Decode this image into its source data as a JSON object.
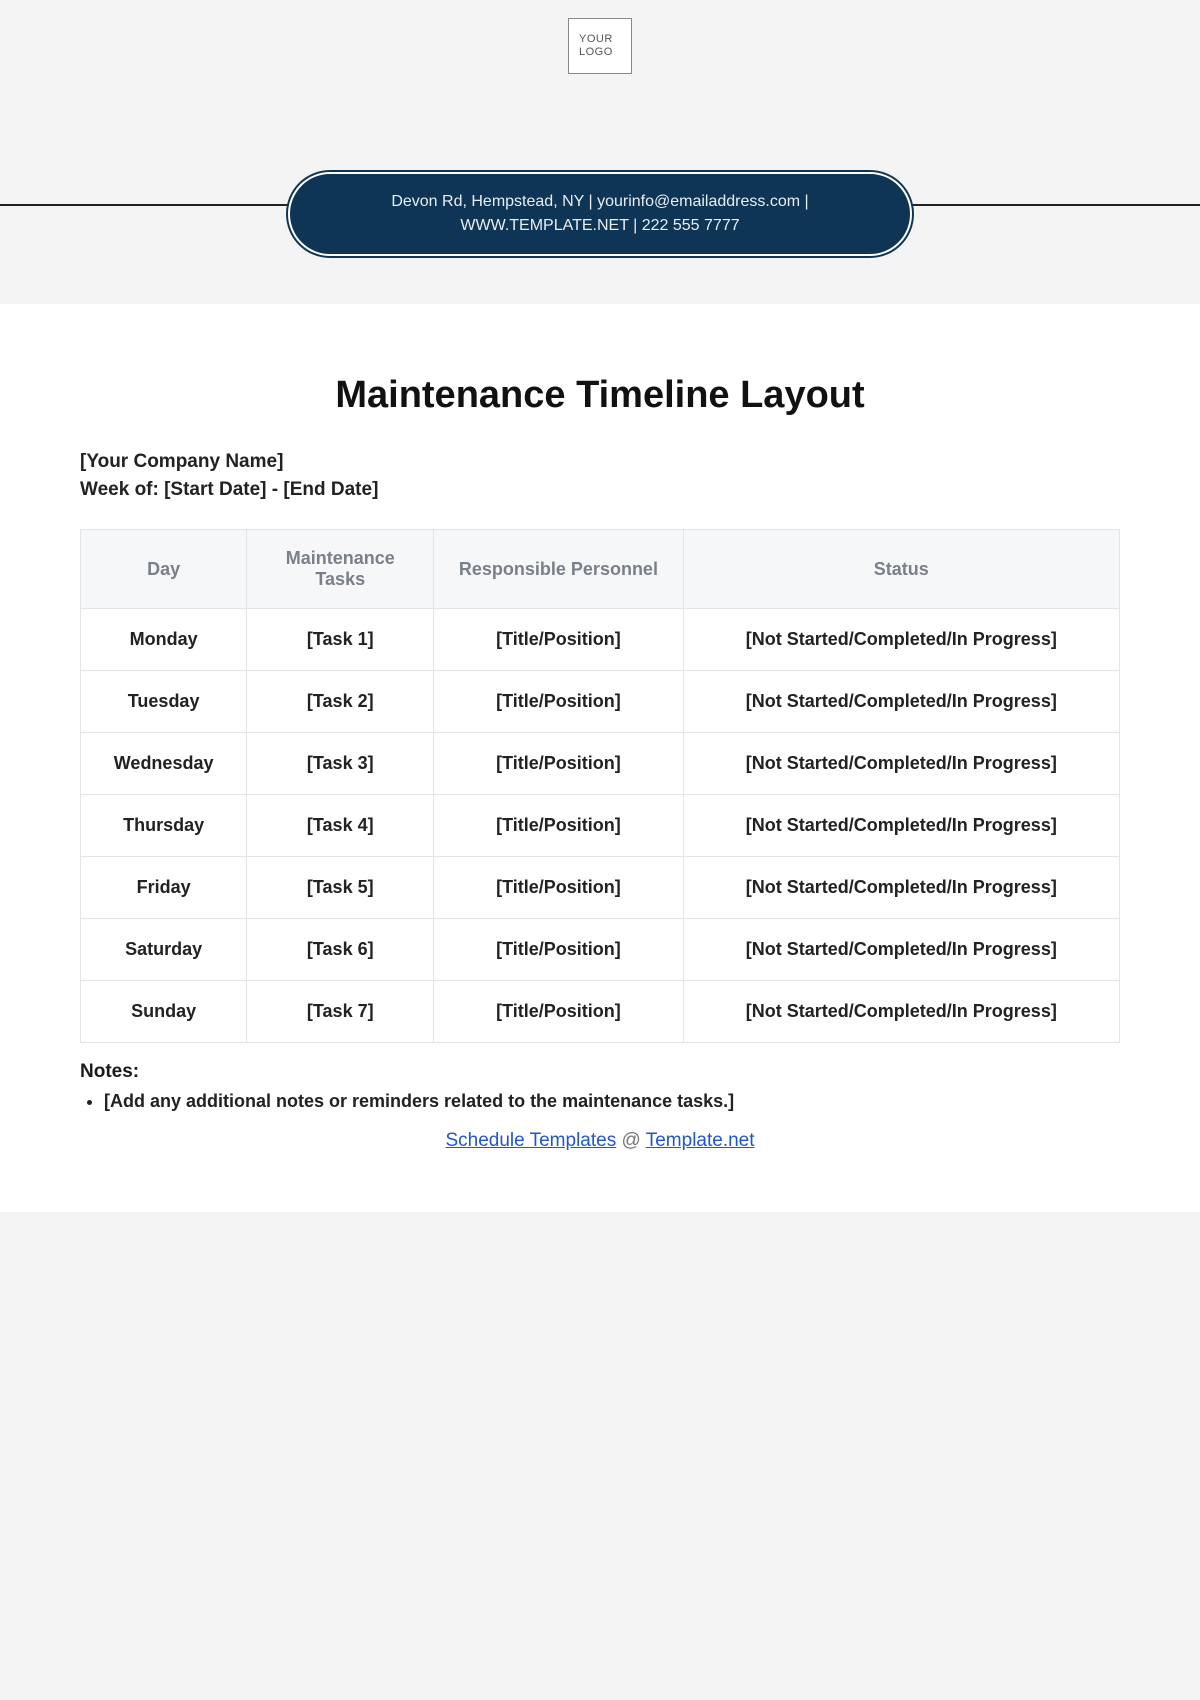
{
  "logo": {
    "line1": "YOUR",
    "line2": "LOGO"
  },
  "banner": {
    "text": "Devon Rd, Hempstead, NY | yourinfo@emailaddress.com | WWW.TEMPLATE.NET | 222 555 7777",
    "bg_color": "#0e3555",
    "text_color": "#e8eef3"
  },
  "title": "Maintenance Timeline Layout",
  "company_line": "[Your Company Name]",
  "week_line": "Week of: [Start Date] - [End Date]",
  "table": {
    "columns": [
      "Day",
      "Maintenance Tasks",
      "Responsible Personnel",
      "Status"
    ],
    "rows": [
      {
        "day": "Monday",
        "task": "[Task 1]",
        "person": "[Title/Position]",
        "status": "[Not Started/Completed/In Progress]"
      },
      {
        "day": "Tuesday",
        "task": "[Task 2]",
        "person": "[Title/Position]",
        "status": "[Not Started/Completed/In Progress]"
      },
      {
        "day": "Wednesday",
        "task": "[Task 3]",
        "person": "[Title/Position]",
        "status": "[Not Started/Completed/In Progress]"
      },
      {
        "day": "Thursday",
        "task": "[Task 4]",
        "person": "[Title/Position]",
        "status": "[Not Started/Completed/In Progress]"
      },
      {
        "day": "Friday",
        "task": "[Task 5]",
        "person": "[Title/Position]",
        "status": "[Not Started/Completed/In Progress]"
      },
      {
        "day": "Saturday",
        "task": "[Task 6]",
        "person": "[Title/Position]",
        "status": "[Not Started/Completed/In Progress]"
      },
      {
        "day": "Sunday",
        "task": "[Task 7]",
        "person": "[Title/Position]",
        "status": "[Not Started/Completed/In Progress]"
      }
    ],
    "header_bg": "#f6f7f9",
    "header_color": "#7a8089",
    "border_color": "#e2e4e8",
    "cell_font_weight": 700
  },
  "notes": {
    "heading": "Notes:",
    "items": [
      "[Add any additional notes or reminders related to the maintenance tasks.]"
    ]
  },
  "footer": {
    "link1_text": "Schedule Templates",
    "separator": " @ ",
    "link2_text": "Template.net",
    "link_color": "#2255cc"
  },
  "colors": {
    "page_bg": "#f4f4f4",
    "card_bg": "#ffffff",
    "text": "#1a1a1a"
  }
}
